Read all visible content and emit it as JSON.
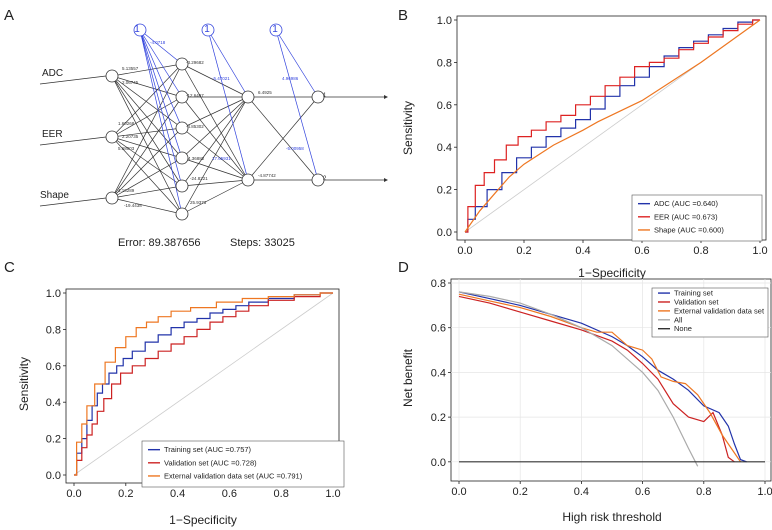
{
  "panels": {
    "A": {
      "letter": "A",
      "inputs": [
        "ADC",
        "EER",
        "Shape"
      ],
      "bias_label": "1",
      "output_labels": [
        "1",
        "2"
      ],
      "input_to_hidden_weights": [
        "5.13557",
        "2.06745",
        "4.65641",
        "0.47315",
        "1.60268",
        "3.26708",
        "2.20735",
        "1.07313",
        "0.87461",
        "5.68003",
        "4.16289",
        "-19.4438",
        "1.46158"
      ],
      "bias_hidden1_weights": [
        "-4.0718",
        "1.48432",
        "5.09874",
        "2.25431",
        "1.79946",
        "14.1984"
      ],
      "hidden1_to_hidden2_weights": [
        "-3.29682",
        "-12.6497",
        "-26.8891",
        "-4.85302",
        "4.36882",
        "-24.8221",
        "-8.4917",
        "25.9373"
      ],
      "bias_hidden2_weights": [
        "-5.47021",
        "17.65931"
      ],
      "hidden2_to_output_weights": [
        "6.4925",
        "-4.87742",
        "-0.6847",
        "12.8711"
      ],
      "bias_output_weights": [
        "4.96986",
        "-5.00958"
      ],
      "error_label": "Error: 89.387656",
      "steps_label": "Steps: 33025"
    },
    "B": {
      "letter": "B",
      "legend": [
        "ADC (AUC =0.640)",
        "EER (AUC =0.673)",
        "Shape (AUC =0.600)"
      ]
    },
    "C": {
      "letter": "C",
      "legend": [
        "Training set (AUC =0.757)",
        "Validation set (AUC =0.728)",
        "External validation data set (AUC =0.791)"
      ]
    },
    "D": {
      "letter": "D",
      "legend": [
        "Training set",
        "Validation set",
        "External validation data set",
        "All",
        "None"
      ]
    }
  },
  "chart_data": [
    {
      "panel": "B",
      "type": "line",
      "xlabel": "1−Specificity",
      "ylabel": "Sensitivity",
      "xlim": [
        0,
        1
      ],
      "ylim": [
        0,
        1
      ],
      "xticks": [
        "0.0",
        "0.2",
        "0.4",
        "0.6",
        "0.8",
        "1.0"
      ],
      "yticks": [
        "0.0",
        "0.2",
        "0.4",
        "0.6",
        "0.8",
        "1.0"
      ],
      "legend_position": "bottom-right",
      "diagonal": true,
      "series": [
        {
          "name": "ADC (AUC =0.640)",
          "color": "#2233aa",
          "shape": "step",
          "x": [
            0,
            0.02,
            0.05,
            0.1,
            0.15,
            0.2,
            0.25,
            0.3,
            0.35,
            0.4,
            0.45,
            0.5,
            0.55,
            0.6,
            0.65,
            0.7,
            0.75,
            0.8,
            0.85,
            0.9,
            0.95,
            1.0
          ],
          "y": [
            0,
            0.06,
            0.12,
            0.2,
            0.28,
            0.35,
            0.4,
            0.45,
            0.49,
            0.53,
            0.58,
            0.64,
            0.69,
            0.73,
            0.78,
            0.83,
            0.87,
            0.9,
            0.93,
            0.96,
            0.99,
            1.0
          ]
        },
        {
          "name": "EER (AUC =0.673)",
          "color": "#dd2222",
          "shape": "step",
          "x": [
            0,
            0.02,
            0.05,
            0.08,
            0.12,
            0.16,
            0.2,
            0.25,
            0.3,
            0.35,
            0.4,
            0.45,
            0.5,
            0.55,
            0.6,
            0.65,
            0.7,
            0.75,
            0.8,
            0.85,
            0.9,
            0.95,
            1.0
          ],
          "y": [
            0,
            0.12,
            0.22,
            0.28,
            0.34,
            0.41,
            0.45,
            0.48,
            0.52,
            0.55,
            0.6,
            0.64,
            0.69,
            0.73,
            0.78,
            0.8,
            0.82,
            0.86,
            0.89,
            0.92,
            0.95,
            0.98,
            1.0
          ]
        },
        {
          "name": "Shape (AUC =0.600)",
          "color": "#ee7722",
          "shape": "line",
          "x": [
            0,
            0.02,
            0.05,
            0.1,
            0.15,
            0.2,
            0.3,
            0.4,
            0.45,
            0.6,
            0.8,
            1.0
          ],
          "y": [
            0,
            0.04,
            0.1,
            0.18,
            0.26,
            0.32,
            0.41,
            0.48,
            0.52,
            0.62,
            0.8,
            1.0
          ]
        }
      ]
    },
    {
      "panel": "C",
      "type": "line",
      "xlabel": "1−Specificity",
      "ylabel": "Sensitivity",
      "xlim": [
        0,
        1
      ],
      "ylim": [
        0,
        1
      ],
      "xticks": [
        "0.0",
        "0.2",
        "0.4",
        "0.6",
        "0.8",
        "1.0"
      ],
      "yticks": [
        "0.0",
        "0.2",
        "0.4",
        "0.6",
        "0.8",
        "1.0"
      ],
      "legend_position": "bottom-right",
      "diagonal": true,
      "series": [
        {
          "name": "Training set (AUC =0.757)",
          "color": "#2233aa",
          "shape": "step",
          "x": [
            0,
            0.02,
            0.04,
            0.06,
            0.08,
            0.1,
            0.12,
            0.15,
            0.18,
            0.2,
            0.25,
            0.3,
            0.35,
            0.4,
            0.45,
            0.5,
            0.55,
            0.6,
            0.65,
            0.7,
            0.8,
            0.9,
            1.0
          ],
          "y": [
            0,
            0.12,
            0.2,
            0.3,
            0.38,
            0.45,
            0.5,
            0.56,
            0.6,
            0.64,
            0.68,
            0.73,
            0.77,
            0.81,
            0.84,
            0.86,
            0.89,
            0.91,
            0.93,
            0.95,
            0.97,
            0.99,
            1.0
          ]
        },
        {
          "name": "Validation set (AUC =0.728)",
          "color": "#cc2222",
          "shape": "step",
          "x": [
            0,
            0.02,
            0.04,
            0.06,
            0.08,
            0.1,
            0.13,
            0.16,
            0.2,
            0.25,
            0.3,
            0.35,
            0.4,
            0.45,
            0.5,
            0.55,
            0.6,
            0.65,
            0.7,
            0.8,
            0.9,
            1.0
          ],
          "y": [
            0,
            0.08,
            0.15,
            0.22,
            0.28,
            0.35,
            0.42,
            0.5,
            0.56,
            0.6,
            0.64,
            0.68,
            0.72,
            0.76,
            0.8,
            0.84,
            0.87,
            0.9,
            0.93,
            0.96,
            0.98,
            1.0
          ]
        },
        {
          "name": "External validation data set (AUC =0.791)",
          "color": "#ee7722",
          "shape": "step",
          "x": [
            0,
            0.02,
            0.04,
            0.06,
            0.1,
            0.14,
            0.18,
            0.22,
            0.26,
            0.3,
            0.35,
            0.4,
            0.5,
            0.6,
            0.7,
            0.8,
            0.9,
            1.0
          ],
          "y": [
            0,
            0.18,
            0.28,
            0.38,
            0.5,
            0.62,
            0.7,
            0.76,
            0.81,
            0.84,
            0.87,
            0.9,
            0.92,
            0.95,
            0.97,
            0.98,
            0.99,
            1.0
          ]
        }
      ]
    },
    {
      "panel": "D",
      "type": "line",
      "xlabel": "High risk threshold",
      "ylabel": "Net benefit",
      "xlim": [
        0,
        1
      ],
      "ylim": [
        -0.05,
        0.8
      ],
      "xticks": [
        "0.0",
        "0.2",
        "0.4",
        "0.6",
        "0.8",
        "1.0"
      ],
      "yticks": [
        "0.0",
        "0.2",
        "0.4",
        "0.6",
        "0.8"
      ],
      "legend_position": "top-right",
      "grid": true,
      "series": [
        {
          "name": "Training set",
          "color": "#2233aa",
          "shape": "line",
          "x": [
            0,
            0.1,
            0.2,
            0.3,
            0.4,
            0.5,
            0.55,
            0.6,
            0.65,
            0.7,
            0.75,
            0.8,
            0.85,
            0.88,
            0.9,
            0.92,
            0.94
          ],
          "y": [
            0.76,
            0.73,
            0.7,
            0.66,
            0.62,
            0.56,
            0.52,
            0.47,
            0.41,
            0.37,
            0.32,
            0.25,
            0.22,
            0.16,
            0.08,
            0.01,
            0.0
          ]
        },
        {
          "name": "Validation set",
          "color": "#cc2222",
          "shape": "line",
          "x": [
            0,
            0.1,
            0.2,
            0.3,
            0.4,
            0.5,
            0.55,
            0.6,
            0.65,
            0.7,
            0.75,
            0.8,
            0.83,
            0.86,
            0.88,
            0.9
          ],
          "y": [
            0.74,
            0.71,
            0.67,
            0.63,
            0.59,
            0.54,
            0.5,
            0.44,
            0.37,
            0.26,
            0.2,
            0.18,
            0.22,
            0.12,
            0.02,
            0.0
          ]
        },
        {
          "name": "External validation data set",
          "color": "#ee7722",
          "shape": "line",
          "x": [
            0,
            0.1,
            0.2,
            0.3,
            0.4,
            0.45,
            0.5,
            0.55,
            0.6,
            0.63,
            0.66,
            0.7,
            0.74,
            0.78,
            0.82,
            0.86,
            0.9,
            0.92
          ],
          "y": [
            0.75,
            0.72,
            0.69,
            0.65,
            0.6,
            0.58,
            0.58,
            0.52,
            0.5,
            0.46,
            0.38,
            0.36,
            0.35,
            0.3,
            0.22,
            0.12,
            0.04,
            0.0
          ]
        },
        {
          "name": "All",
          "color": "#aaaaaa",
          "shape": "line",
          "x": [
            0,
            0.1,
            0.2,
            0.3,
            0.4,
            0.5,
            0.6,
            0.65,
            0.7,
            0.75,
            0.78
          ],
          "y": [
            0.76,
            0.74,
            0.71,
            0.66,
            0.6,
            0.52,
            0.4,
            0.32,
            0.2,
            0.06,
            -0.02
          ]
        },
        {
          "name": "None",
          "color": "#333333",
          "shape": "line",
          "x": [
            0,
            1.0
          ],
          "y": [
            0,
            0
          ]
        }
      ]
    }
  ]
}
